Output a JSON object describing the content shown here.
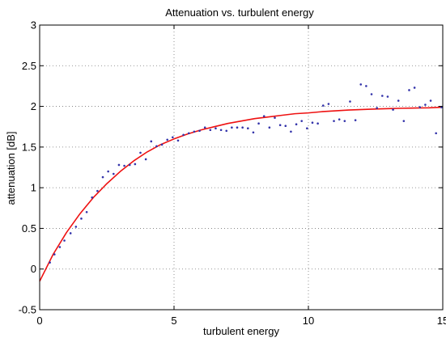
{
  "chart_data": {
    "type": "scatter",
    "title": "Attenuation vs. turbulent energy",
    "xlabel": "turbulent energy",
    "ylabel": "attenuation [dB]",
    "xlim": [
      0,
      15
    ],
    "ylim": [
      -0.5,
      3
    ],
    "x_ticks": [
      0,
      5,
      10,
      15
    ],
    "y_ticks": [
      -0.5,
      0,
      0.5,
      1,
      1.5,
      2,
      2.5,
      3
    ],
    "x_tick_labels": [
      "0",
      "5",
      "10",
      "15"
    ],
    "y_tick_labels": [
      "-0.5",
      "0",
      "0.5",
      "1",
      "1.5",
      "2",
      "2.5",
      "3"
    ],
    "grid": "dotted",
    "legend": "none",
    "colors": {
      "points": "#3333aa",
      "fit": "#ee1111"
    },
    "series": [
      {
        "kind": "points",
        "x": [
          0.38,
          0.55,
          0.75,
          0.92,
          1.15,
          1.35,
          1.55,
          1.75,
          1.95,
          2.15,
          2.35,
          2.55,
          2.75,
          2.95,
          3.15,
          3.35,
          3.55,
          3.75,
          3.95,
          4.15,
          4.35,
          4.55,
          4.75,
          4.95,
          5.15,
          5.35,
          5.55,
          5.75,
          5.95,
          6.15,
          6.35,
          6.55,
          6.75,
          6.95,
          7.15,
          7.35,
          7.55,
          7.75,
          7.95,
          8.15,
          8.35,
          8.55,
          8.75,
          8.95,
          9.15,
          9.35,
          9.55,
          9.75,
          9.95,
          10.15,
          10.35,
          10.55,
          10.75,
          10.95,
          11.15,
          11.35,
          11.55,
          11.75,
          11.95,
          12.15,
          12.35,
          12.55,
          12.75,
          12.95,
          13.15,
          13.35,
          13.55,
          13.75,
          13.95,
          14.15,
          14.35,
          14.55,
          14.75,
          14.95
        ],
        "y": [
          0.08,
          0.18,
          0.27,
          0.35,
          0.44,
          0.52,
          0.62,
          0.7,
          0.88,
          0.96,
          1.13,
          1.2,
          1.17,
          1.28,
          1.27,
          1.28,
          1.29,
          1.43,
          1.35,
          1.57,
          1.51,
          1.53,
          1.59,
          1.62,
          1.58,
          1.65,
          1.67,
          1.69,
          1.7,
          1.74,
          1.71,
          1.73,
          1.71,
          1.7,
          1.74,
          1.74,
          1.74,
          1.73,
          1.68,
          1.79,
          1.88,
          1.74,
          1.86,
          1.77,
          1.76,
          1.69,
          1.78,
          1.82,
          1.73,
          1.8,
          1.79,
          2.01,
          2.03,
          1.82,
          1.84,
          1.82,
          2.06,
          1.83,
          2.27,
          2.25,
          2.15,
          1.98,
          2.13,
          2.12,
          1.96,
          2.07,
          1.82,
          2.2,
          2.23,
          1.99,
          2.02,
          2.07,
          1.67,
          1.99
        ]
      },
      {
        "kind": "fit-curve",
        "x": [
          0,
          0.5,
          1,
          1.5,
          2,
          2.5,
          3,
          3.5,
          4,
          4.5,
          5,
          5.5,
          6,
          6.5,
          7,
          7.5,
          8,
          8.5,
          9,
          9.5,
          10,
          10.5,
          11,
          11.5,
          12,
          12.5,
          13,
          13.5,
          14,
          14.5,
          15
        ],
        "y": [
          -0.15,
          0.18,
          0.45,
          0.68,
          0.88,
          1.05,
          1.2,
          1.33,
          1.44,
          1.53,
          1.6,
          1.66,
          1.71,
          1.75,
          1.79,
          1.82,
          1.85,
          1.87,
          1.89,
          1.91,
          1.92,
          1.935,
          1.945,
          1.955,
          1.962,
          1.968,
          1.973,
          1.977,
          1.98,
          1.983,
          1.99
        ]
      }
    ]
  }
}
